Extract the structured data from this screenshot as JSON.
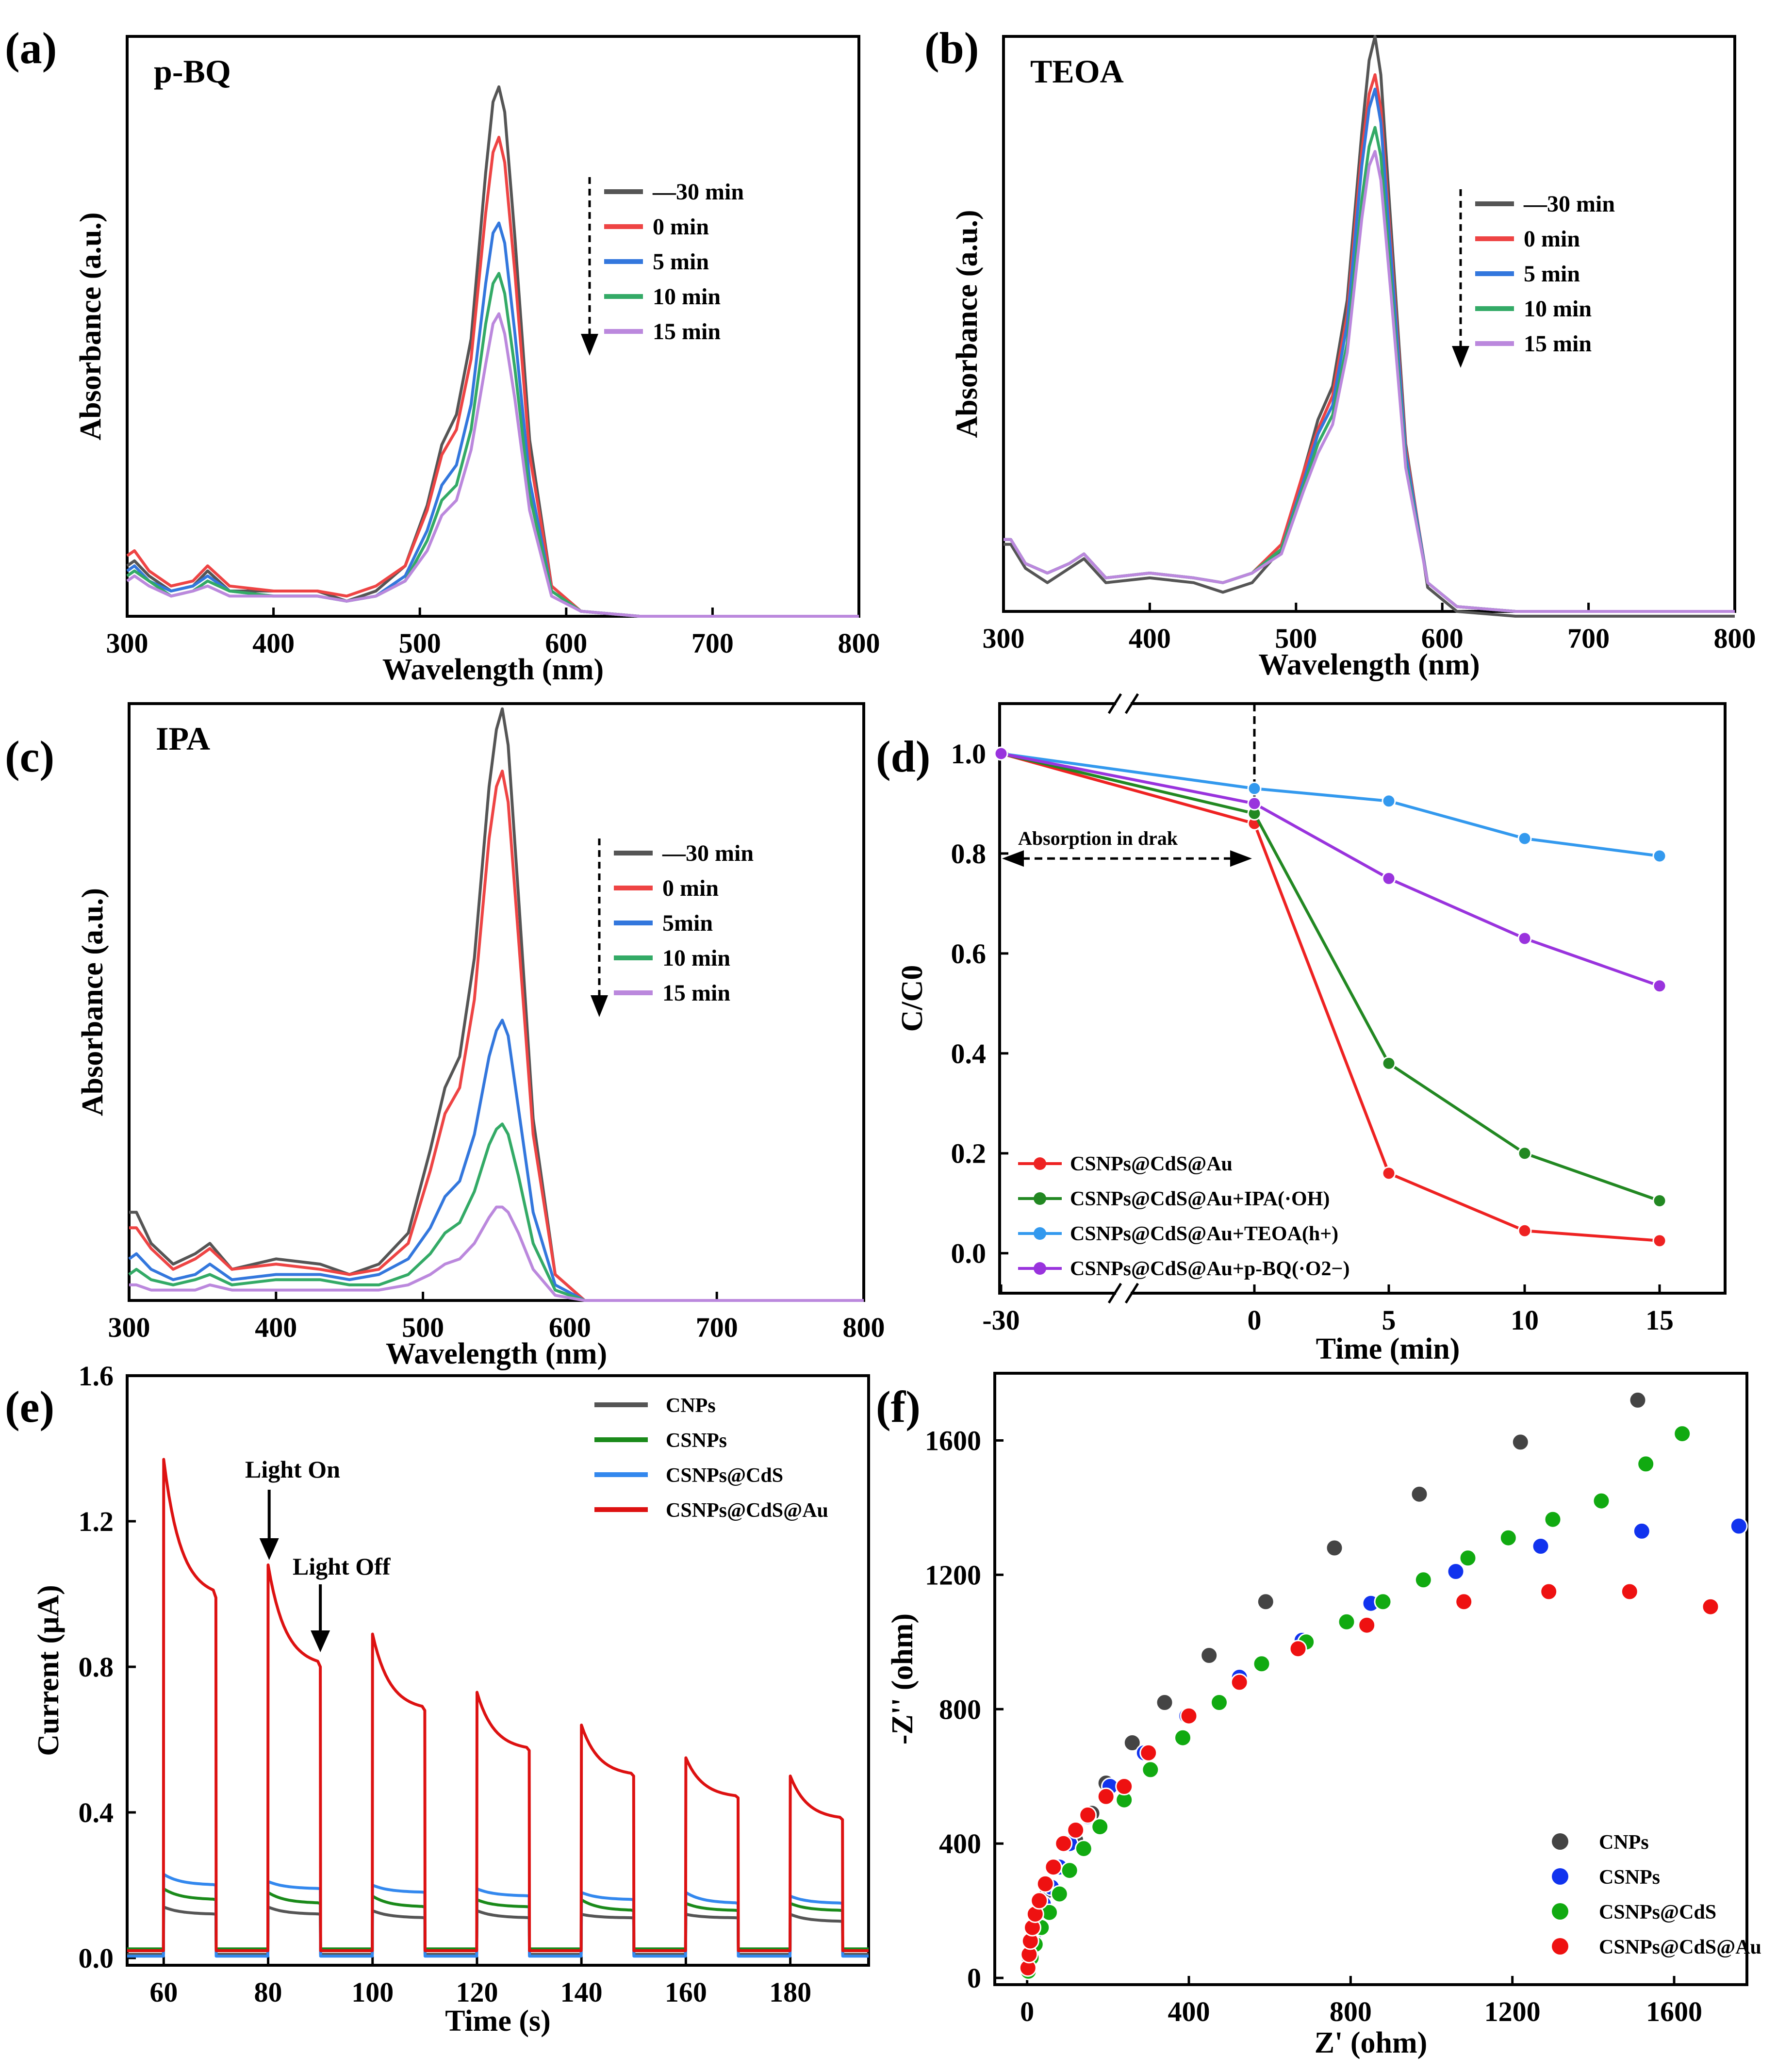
{
  "chart_data": [
    {
      "panel": "(a)",
      "type": "line",
      "title": "p-BQ",
      "xlabel": "Wavelength (nm)",
      "ylabel": "Absorbance (a.u.)",
      "xlim": [
        300,
        800
      ],
      "ylim": [
        0,
        1.15
      ],
      "xticks": [
        300,
        400,
        500,
        600,
        700,
        800
      ],
      "legend": "top-right",
      "x": [
        300,
        305,
        315,
        330,
        345,
        355,
        370,
        400,
        430,
        450,
        470,
        490,
        505,
        515,
        525,
        535,
        545,
        550,
        554,
        558,
        565,
        575,
        590,
        610,
        650,
        700,
        800
      ],
      "series": [
        {
          "name": "—30 min",
          "color": "#555555",
          "values": [
            0.1,
            0.11,
            0.08,
            0.05,
            0.06,
            0.09,
            0.05,
            0.05,
            0.05,
            0.03,
            0.05,
            0.1,
            0.22,
            0.34,
            0.4,
            0.55,
            0.88,
            1.02,
            1.05,
            1.0,
            0.75,
            0.35,
            0.06,
            0.01,
            0.0,
            0.0,
            0.0
          ]
        },
        {
          "name": "0 min",
          "color": "#EE4444",
          "values": [
            0.12,
            0.13,
            0.09,
            0.06,
            0.07,
            0.1,
            0.06,
            0.05,
            0.05,
            0.04,
            0.06,
            0.1,
            0.21,
            0.32,
            0.37,
            0.51,
            0.8,
            0.92,
            0.95,
            0.9,
            0.68,
            0.32,
            0.06,
            0.01,
            0.0,
            0.0,
            0.0
          ]
        },
        {
          "name": "5 min",
          "color": "#3377DD",
          "values": [
            0.09,
            0.1,
            0.07,
            0.05,
            0.06,
            0.08,
            0.05,
            0.04,
            0.04,
            0.03,
            0.04,
            0.08,
            0.17,
            0.26,
            0.3,
            0.42,
            0.66,
            0.76,
            0.78,
            0.74,
            0.56,
            0.27,
            0.05,
            0.01,
            0.0,
            0.0,
            0.0
          ]
        },
        {
          "name": "10 min",
          "color": "#33AA66",
          "values": [
            0.08,
            0.09,
            0.07,
            0.04,
            0.05,
            0.07,
            0.05,
            0.04,
            0.04,
            0.03,
            0.04,
            0.07,
            0.15,
            0.23,
            0.26,
            0.37,
            0.58,
            0.66,
            0.68,
            0.64,
            0.49,
            0.24,
            0.05,
            0.01,
            0.0,
            0.0,
            0.0
          ]
        },
        {
          "name": "15 min",
          "color": "#BB88DD",
          "values": [
            0.07,
            0.08,
            0.06,
            0.04,
            0.05,
            0.06,
            0.04,
            0.04,
            0.04,
            0.03,
            0.04,
            0.07,
            0.13,
            0.2,
            0.23,
            0.33,
            0.5,
            0.58,
            0.6,
            0.56,
            0.43,
            0.21,
            0.04,
            0.01,
            0.0,
            0.0,
            0.0
          ]
        }
      ]
    },
    {
      "panel": "(b)",
      "type": "line",
      "title": "TEOA",
      "xlabel": "Wavelength (nm)",
      "ylabel": "Absorbance (a.u.)",
      "xlim": [
        300,
        800
      ],
      "ylim": [
        0,
        1.2
      ],
      "xticks": [
        300,
        400,
        500,
        600,
        700,
        800
      ],
      "legend": "top-right",
      "x": [
        300,
        305,
        315,
        330,
        345,
        355,
        370,
        400,
        430,
        450,
        470,
        490,
        505,
        515,
        525,
        535,
        545,
        550,
        554,
        558,
        565,
        575,
        590,
        610,
        650,
        700,
        800
      ],
      "series": [
        {
          "name": "—30 min",
          "color": "#555555",
          "values": [
            0.14,
            0.14,
            0.09,
            0.06,
            0.09,
            0.11,
            0.06,
            0.07,
            0.06,
            0.04,
            0.06,
            0.13,
            0.29,
            0.4,
            0.47,
            0.65,
            1.0,
            1.15,
            1.2,
            1.12,
            0.8,
            0.35,
            0.05,
            0.0,
            -0.01,
            -0.01,
            -0.01
          ]
        },
        {
          "name": "0 min",
          "color": "#EE4444",
          "values": [
            0.15,
            0.15,
            0.1,
            0.08,
            0.1,
            0.12,
            0.07,
            0.08,
            0.07,
            0.06,
            0.08,
            0.14,
            0.29,
            0.38,
            0.45,
            0.62,
            0.96,
            1.08,
            1.12,
            1.05,
            0.76,
            0.34,
            0.06,
            0.01,
            0.0,
            0.0,
            0.0
          ]
        },
        {
          "name": "5 min",
          "color": "#3377DD",
          "values": [
            0.15,
            0.15,
            0.1,
            0.08,
            0.1,
            0.12,
            0.07,
            0.08,
            0.07,
            0.06,
            0.08,
            0.13,
            0.27,
            0.37,
            0.43,
            0.6,
            0.93,
            1.05,
            1.09,
            1.02,
            0.74,
            0.33,
            0.06,
            0.01,
            0.0,
            0.0,
            0.0
          ]
        },
        {
          "name": "10 min",
          "color": "#33AA66",
          "values": [
            0.15,
            0.15,
            0.1,
            0.08,
            0.1,
            0.12,
            0.07,
            0.08,
            0.07,
            0.06,
            0.08,
            0.13,
            0.26,
            0.35,
            0.41,
            0.56,
            0.86,
            0.97,
            1.01,
            0.95,
            0.69,
            0.31,
            0.06,
            0.01,
            0.0,
            0.0,
            0.0
          ]
        },
        {
          "name": "15 min",
          "color": "#BB88DD",
          "values": [
            0.15,
            0.15,
            0.1,
            0.08,
            0.1,
            0.12,
            0.07,
            0.08,
            0.07,
            0.06,
            0.08,
            0.12,
            0.25,
            0.33,
            0.39,
            0.54,
            0.82,
            0.93,
            0.96,
            0.9,
            0.66,
            0.3,
            0.06,
            0.01,
            0.0,
            0.0,
            0.0
          ]
        }
      ]
    },
    {
      "panel": "(c)",
      "type": "line",
      "title": "IPA",
      "xlabel": "Wavelength (nm)",
      "ylabel": "Absorbance (a.u.)",
      "xlim": [
        300,
        800
      ],
      "ylim": [
        0,
        1.15
      ],
      "xticks": [
        300,
        400,
        500,
        600,
        700,
        800
      ],
      "legend": "top-right",
      "x": [
        300,
        305,
        315,
        330,
        345,
        355,
        370,
        400,
        430,
        450,
        470,
        490,
        505,
        515,
        525,
        535,
        545,
        550,
        554,
        558,
        565,
        575,
        590,
        610,
        650,
        700,
        800
      ],
      "series": [
        {
          "name": "—30 min",
          "color": "#555555",
          "values": [
            0.17,
            0.17,
            0.11,
            0.07,
            0.09,
            0.11,
            0.06,
            0.08,
            0.07,
            0.05,
            0.07,
            0.13,
            0.29,
            0.41,
            0.47,
            0.66,
            0.99,
            1.1,
            1.14,
            1.07,
            0.78,
            0.35,
            0.05,
            0.0,
            0.0,
            0.0,
            0.0
          ]
        },
        {
          "name": "0 min",
          "color": "#EE4444",
          "values": [
            0.14,
            0.14,
            0.1,
            0.06,
            0.08,
            0.1,
            0.06,
            0.07,
            0.06,
            0.05,
            0.06,
            0.11,
            0.25,
            0.36,
            0.41,
            0.58,
            0.89,
            0.99,
            1.02,
            0.96,
            0.7,
            0.32,
            0.05,
            0.0,
            0.0,
            0.0,
            0.0
          ]
        },
        {
          "name": "5min",
          "color": "#3377DD",
          "values": [
            0.08,
            0.09,
            0.06,
            0.04,
            0.05,
            0.07,
            0.04,
            0.05,
            0.05,
            0.04,
            0.05,
            0.08,
            0.14,
            0.2,
            0.23,
            0.32,
            0.47,
            0.52,
            0.54,
            0.51,
            0.37,
            0.17,
            0.03,
            0.0,
            0.0,
            0.0,
            0.0
          ]
        },
        {
          "name": "10 min",
          "color": "#33AA66",
          "values": [
            0.05,
            0.06,
            0.04,
            0.03,
            0.04,
            0.05,
            0.03,
            0.04,
            0.04,
            0.03,
            0.03,
            0.05,
            0.09,
            0.13,
            0.15,
            0.21,
            0.3,
            0.33,
            0.34,
            0.32,
            0.24,
            0.11,
            0.02,
            0.0,
            0.0,
            0.0,
            0.0
          ]
        },
        {
          "name": "15 min",
          "color": "#BB88DD",
          "values": [
            0.03,
            0.03,
            0.02,
            0.02,
            0.02,
            0.03,
            0.02,
            0.02,
            0.02,
            0.02,
            0.02,
            0.03,
            0.05,
            0.07,
            0.08,
            0.11,
            0.16,
            0.18,
            0.18,
            0.17,
            0.13,
            0.06,
            0.01,
            0.0,
            0.0,
            0.0,
            0.0
          ]
        }
      ]
    },
    {
      "panel": "(d)",
      "type": "line",
      "title": "",
      "xlabel": "Time (min)",
      "ylabel": "C/C0",
      "ylim": [
        -0.08,
        1.1
      ],
      "yticks": [
        "0.0",
        "0.2",
        "0.4",
        "0.6",
        "0.8",
        "1.0"
      ],
      "x_categories": [
        "-30",
        "0",
        "5",
        "10",
        "15"
      ],
      "x": [
        -30,
        0,
        5,
        10,
        15
      ],
      "annotation": "Absorption in drak",
      "legend": "bottom-left",
      "series": [
        {
          "name": "CSNPs@CdS@Au",
          "color": "#EE2222",
          "values": [
            1.0,
            0.86,
            0.16,
            0.045,
            0.025
          ]
        },
        {
          "name": "CSNPs@CdS@Au+IPA(·OH)",
          "color": "#228822",
          "values": [
            1.0,
            0.88,
            0.38,
            0.2,
            0.105
          ]
        },
        {
          "name": "CSNPs@CdS@Au+TEOA(h+)",
          "color": "#3399EE",
          "values": [
            1.0,
            0.93,
            0.905,
            0.83,
            0.795
          ]
        },
        {
          "name": "CSNPs@CdS@Au+p-BQ(·O2−)",
          "color": "#9933DD",
          "values": [
            1.0,
            0.9,
            0.75,
            0.63,
            0.535
          ]
        }
      ]
    },
    {
      "panel": "(e)",
      "type": "line",
      "title": "",
      "xlabel": "Time (s)",
      "ylabel": "Current (μA)",
      "xlim": [
        53,
        195
      ],
      "ylim": [
        -0.02,
        1.6
      ],
      "xticks": [
        60,
        80,
        100,
        120,
        140,
        160,
        180
      ],
      "yticks": [
        "0.0",
        "0.4",
        "0.8",
        "1.2",
        "1.6"
      ],
      "on_times": [
        60,
        80,
        100,
        120,
        140,
        160,
        180
      ],
      "on_duration_s": 10,
      "annotations": [
        "Light On",
        "Light Off"
      ],
      "legend": "top-right",
      "series": [
        {
          "name": "CNPs",
          "color": "#555555",
          "baseline": 0.01,
          "peaks": [
            0.14,
            0.14,
            0.13,
            0.13,
            0.12,
            0.12,
            0.12
          ],
          "ends": [
            0.12,
            0.12,
            0.11,
            0.11,
            0.11,
            0.11,
            0.1
          ]
        },
        {
          "name": "CSNPs",
          "color": "#1A8A1A",
          "baseline": 0.025,
          "peaks": [
            0.19,
            0.18,
            0.17,
            0.16,
            0.16,
            0.15,
            0.15
          ],
          "ends": [
            0.16,
            0.15,
            0.14,
            0.14,
            0.13,
            0.13,
            0.13
          ]
        },
        {
          "name": "CSNPs@CdS",
          "color": "#3388EE",
          "baseline": 0.005,
          "peaks": [
            0.23,
            0.21,
            0.2,
            0.19,
            0.18,
            0.18,
            0.17
          ],
          "ends": [
            0.2,
            0.19,
            0.18,
            0.17,
            0.16,
            0.15,
            0.15
          ]
        },
        {
          "name": "CSNPs@CdS@Au",
          "color": "#DD1111",
          "baseline": 0.02,
          "peaks": [
            1.37,
            1.08,
            0.89,
            0.73,
            0.64,
            0.55,
            0.5
          ],
          "ends": [
            0.99,
            0.8,
            0.68,
            0.57,
            0.5,
            0.44,
            0.38
          ]
        }
      ]
    },
    {
      "panel": "(f)",
      "type": "scatter",
      "title": "",
      "xlabel": "Z' (ohm)",
      "ylabel": "-Z'' (ohm)",
      "xlim": [
        -80,
        1780
      ],
      "ylim": [
        -20,
        1800
      ],
      "xticks": [
        0,
        400,
        800,
        1200,
        1600
      ],
      "yticks": [
        0,
        400,
        800,
        1200,
        1600
      ],
      "legend": "bottom-right",
      "series": [
        {
          "name": "CNPs",
          "color": "#444444",
          "x": [
            2,
            5,
            10,
            18,
            30,
            50,
            80,
            120,
            160,
            195,
            260,
            340,
            450,
            590,
            760,
            970,
            1220,
            1510
          ],
          "y": [
            30,
            60,
            100,
            150,
            200,
            260,
            330,
            410,
            490,
            580,
            700,
            820,
            960,
            1120,
            1280,
            1440,
            1595,
            1720
          ]
        },
        {
          "name": "CSNPs",
          "color": "#1133EE",
          "x": [
            3,
            8,
            15,
            25,
            40,
            60,
            80,
            105,
            150,
            205,
            290,
            395,
            525,
            680,
            850,
            1060,
            1270,
            1520,
            1760
          ],
          "y": [
            30,
            70,
            120,
            170,
            220,
            270,
            330,
            400,
            480,
            570,
            670,
            780,
            895,
            1005,
            1115,
            1210,
            1285,
            1330,
            1345
          ]
        },
        {
          "name": "CSNPs@CdS",
          "color": "#11AA11",
          "x": [
            3,
            10,
            20,
            35,
            55,
            80,
            105,
            140,
            180,
            240,
            305,
            385,
            475,
            580,
            690,
            790,
            880,
            980,
            1090,
            1190,
            1300,
            1420,
            1530,
            1620
          ],
          "y": [
            20,
            60,
            100,
            150,
            195,
            250,
            320,
            385,
            450,
            530,
            620,
            715,
            820,
            935,
            1000,
            1060,
            1120,
            1185,
            1250,
            1310,
            1365,
            1420,
            1530,
            1620
          ]
        },
        {
          "name": "CSNPs@CdS@Au",
          "color": "#EE1111",
          "x": [
            2,
            5,
            8,
            13,
            20,
            30,
            45,
            65,
            90,
            120,
            150,
            195,
            240,
            300,
            400,
            525,
            670,
            840,
            1080,
            1290,
            1490,
            1690
          ],
          "y": [
            30,
            70,
            110,
            150,
            190,
            230,
            280,
            330,
            400,
            440,
            485,
            540,
            570,
            670,
            780,
            880,
            980,
            1050,
            1120,
            1150,
            1150,
            1105
          ]
        }
      ]
    }
  ],
  "labels": {
    "a": {
      "letter": "(a)",
      "title": "p-BQ"
    },
    "b": {
      "letter": "(b)",
      "title": "TEOA"
    },
    "c": {
      "letter": "(c)",
      "title": "IPA"
    },
    "d": {
      "letter": "(d)",
      "annotation": "Absorption in drak"
    },
    "e": {
      "letter": "(e)",
      "light_on": "Light On",
      "light_off": "Light Off"
    },
    "f": {
      "letter": "(f)"
    }
  },
  "colors": {
    "axis": "#000000",
    "background": "#ffffff"
  }
}
